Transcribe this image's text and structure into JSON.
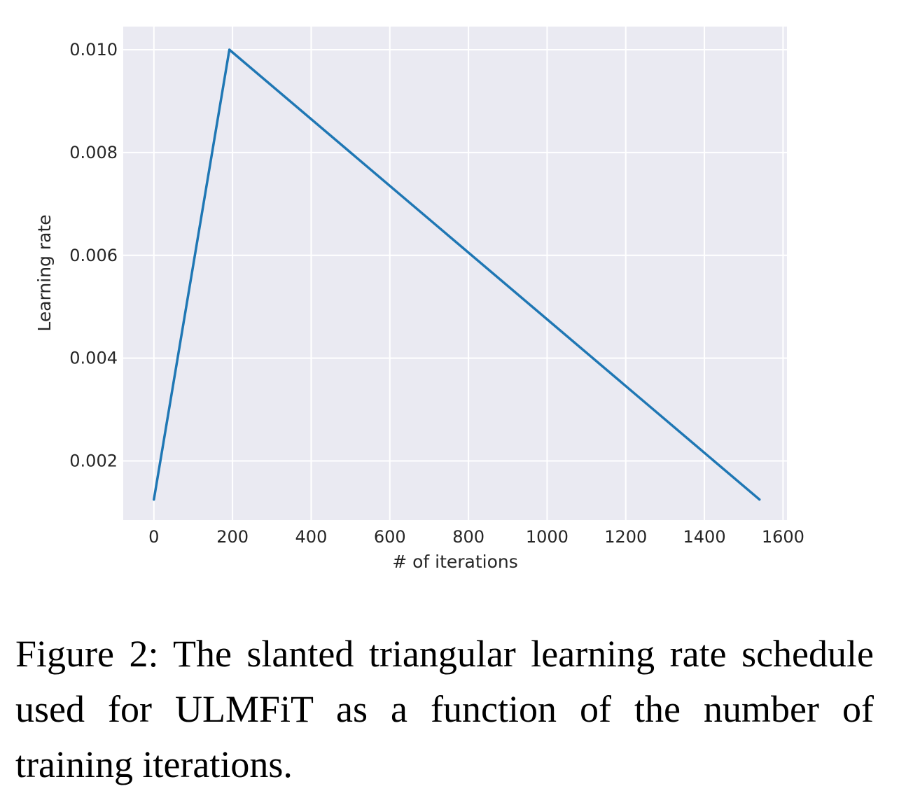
{
  "chart_data": {
    "type": "line",
    "xlabel": "# of iterations",
    "ylabel": "Learning rate",
    "xlim": [
      -78,
      1610
    ],
    "ylim": [
      0.00085,
      0.01045
    ],
    "xticks": [
      0,
      200,
      400,
      600,
      800,
      1000,
      1200,
      1400,
      1600
    ],
    "xtick_labels": [
      "0",
      "200",
      "400",
      "600",
      "800",
      "1000",
      "1200",
      "1400",
      "1600"
    ],
    "yticks": [
      0.002,
      0.004,
      0.006,
      0.008,
      0.01
    ],
    "ytick_labels": [
      "0.002",
      "0.004",
      "0.006",
      "0.008",
      "0.010"
    ],
    "grid": true,
    "background": "#eaeaf2",
    "grid_color": "#ffffff",
    "series": [
      {
        "color": "#1f77b4",
        "x": [
          0,
          192,
          1540
        ],
        "y": [
          0.00125,
          0.01,
          0.00125
        ]
      }
    ]
  },
  "caption": "Figure 2: The slanted triangular learning rate schedule used for ULMFiT as a function of the number of training iterations."
}
